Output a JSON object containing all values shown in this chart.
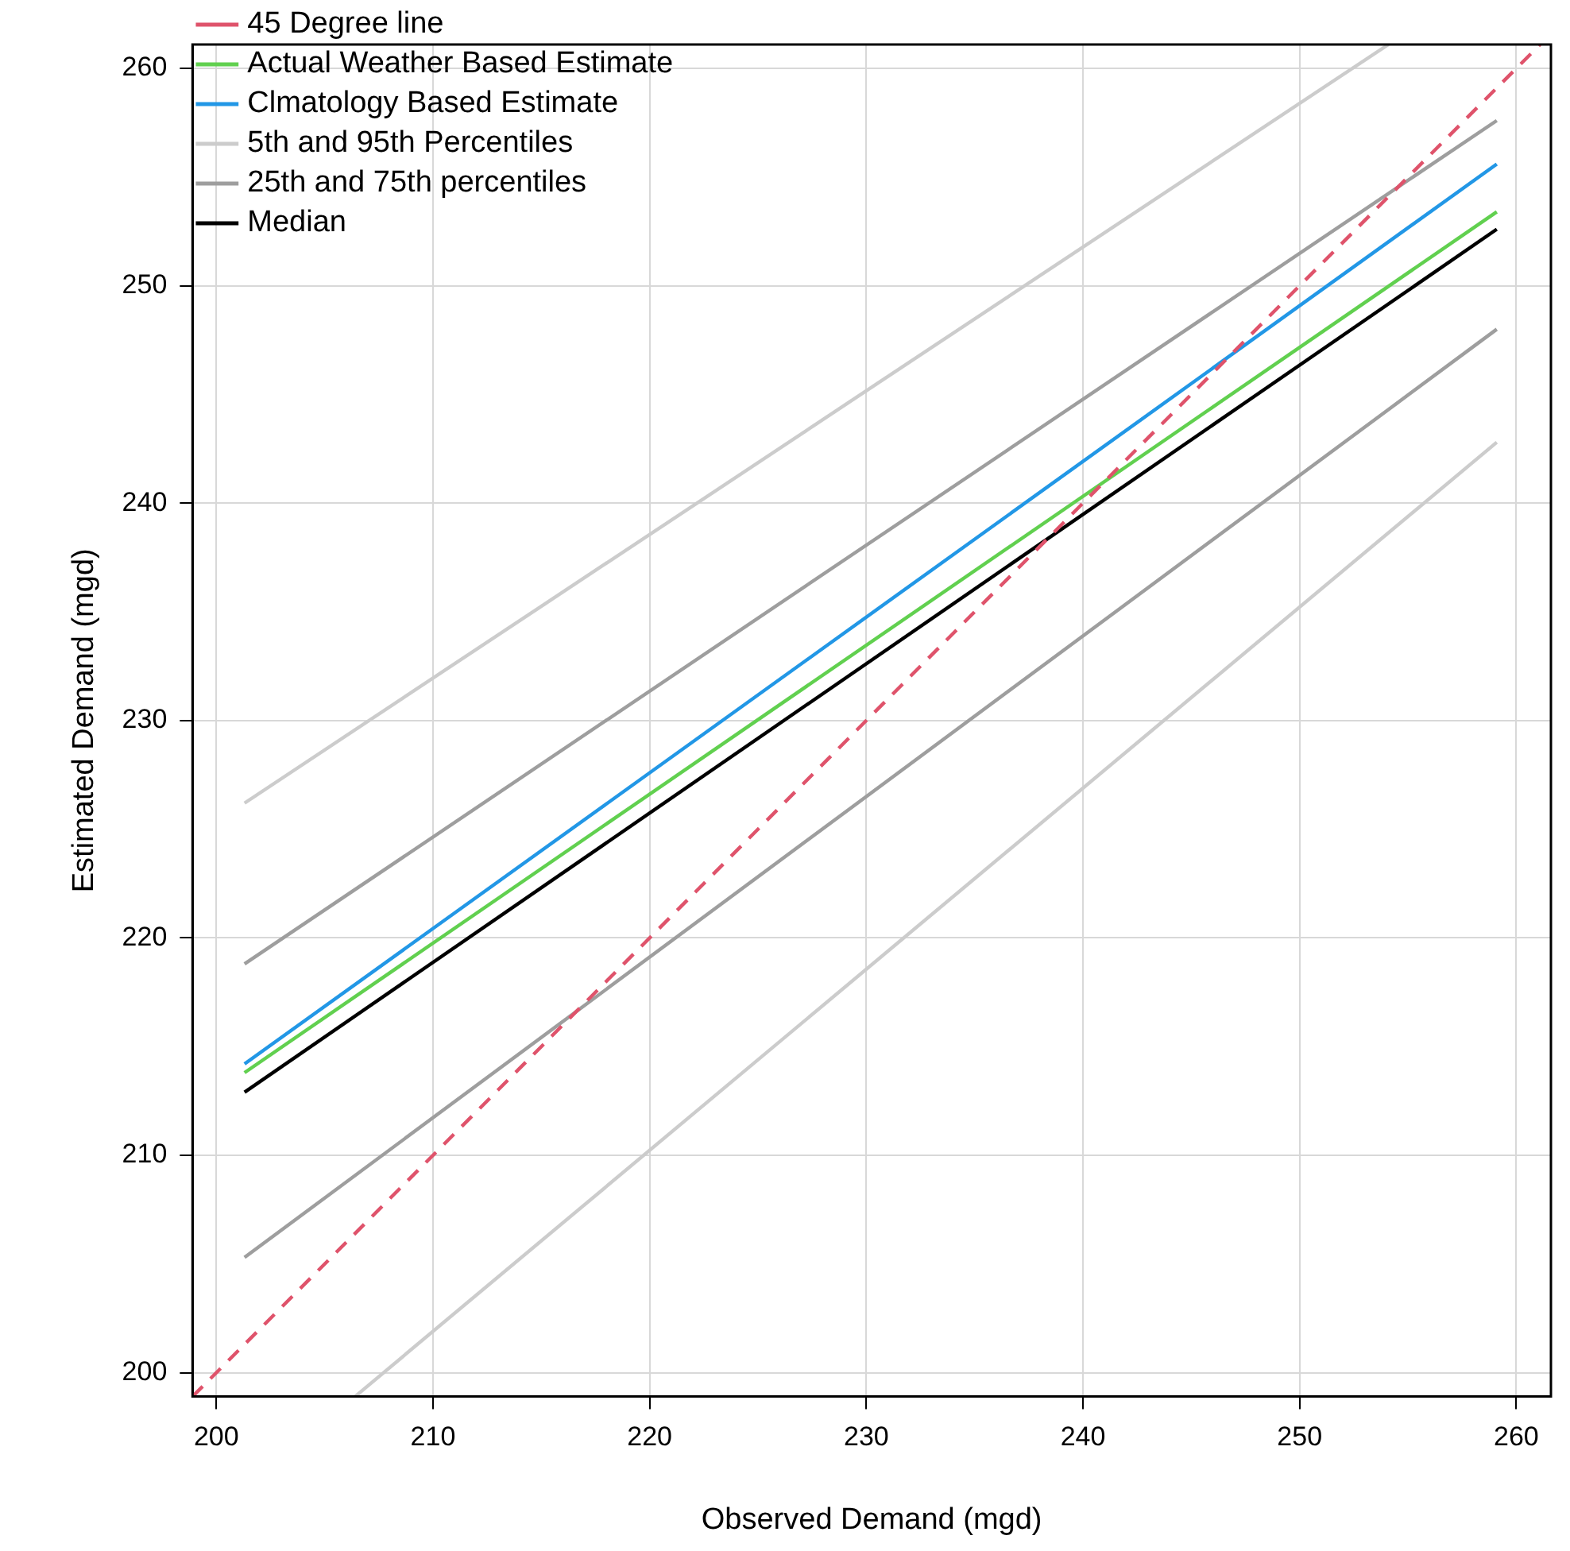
{
  "chart_data": {
    "type": "line",
    "xlabel": "Observed Demand (mgd)",
    "ylabel": "Estimated Demand (mgd)",
    "xlim": [
      198.9,
      261.6
    ],
    "ylim": [
      198.9,
      261.1
    ],
    "xticks": [
      200,
      210,
      220,
      230,
      240,
      250,
      260
    ],
    "yticks": [
      200,
      210,
      220,
      230,
      240,
      250,
      260
    ],
    "grid": true,
    "legend": "top left",
    "marker": "none",
    "line_style": "solid",
    "series": [
      {
        "name": "45 Degree line",
        "color": "#df536b",
        "line_style": "dashed",
        "x": [
          198.9,
          261.1
        ],
        "values": [
          198.9,
          261.1
        ]
      },
      {
        "name": "Actual Weather Based Estimate",
        "color": "#61d04f",
        "x": [
          201.3,
          259.1
        ],
        "values": [
          213.8,
          253.4
        ]
      },
      {
        "name": "Clmatology Based Estimate",
        "color": "#2297e6",
        "x": [
          201.3,
          259.1
        ],
        "values": [
          214.2,
          255.6
        ]
      },
      {
        "name": "5th and 95th Percentiles",
        "color": "#cccccc",
        "x": [
          201.3,
          254.1
        ],
        "values": [
          226.2,
          261.1
        ]
      },
      {
        "color": "#cccccc",
        "x": [
          206.4,
          259.1
        ],
        "values": [
          198.9,
          242.8
        ]
      },
      {
        "name": "25th and 75th percentiles",
        "color": "#9e9e9e",
        "x": [
          201.3,
          259.1
        ],
        "values": [
          218.8,
          257.6
        ]
      },
      {
        "color": "#9e9e9e",
        "x": [
          201.3,
          259.1
        ],
        "values": [
          205.3,
          248.0
        ]
      },
      {
        "name": "Median",
        "color": "#000000",
        "x": [
          201.3,
          259.1
        ],
        "values": [
          212.9,
          252.6
        ]
      }
    ]
  }
}
